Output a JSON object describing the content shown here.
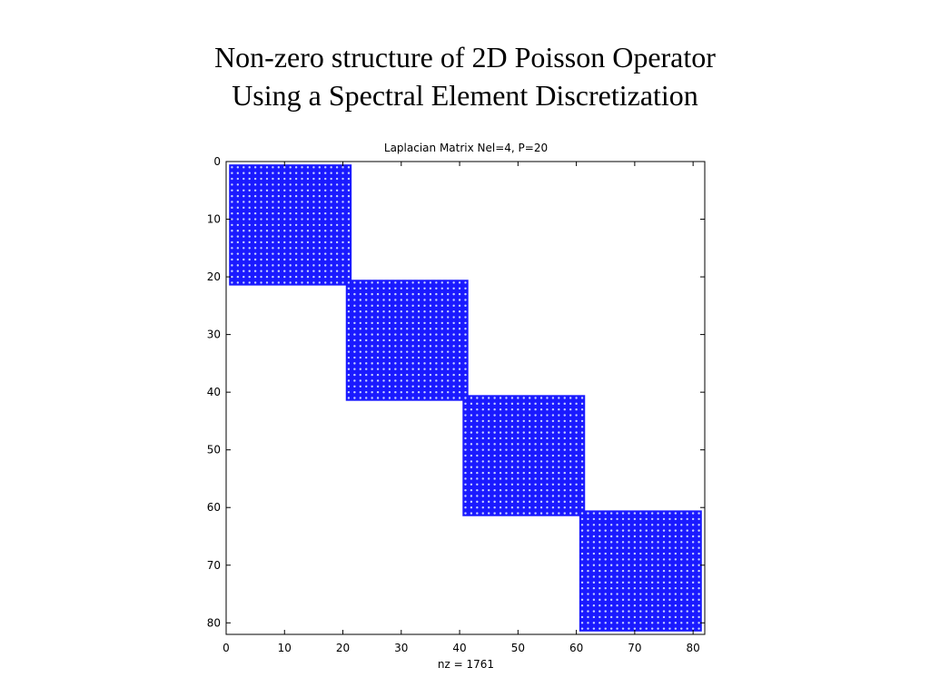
{
  "slide": {
    "title_line1": "Non-zero structure of 2D Poisson Operator",
    "title_line2": "Using a Spectral Element Discretization"
  },
  "chart_data": {
    "type": "scatter",
    "subtype": "spy",
    "title": "Laplacian Matrix Nel=4, P=20",
    "xlabel": "nz = 1761",
    "ylabel": "",
    "xlim": [
      0,
      82
    ],
    "ylim": [
      0,
      82
    ],
    "y_reversed": true,
    "xticks": [
      0,
      10,
      20,
      30,
      40,
      50,
      60,
      70,
      80
    ],
    "yticks": [
      0,
      10,
      20,
      30,
      40,
      50,
      60,
      70,
      80
    ],
    "grid": false,
    "marker_color": "#1a1aff",
    "blocks": [
      {
        "row_start": 1,
        "row_end": 21,
        "col_start": 1,
        "col_end": 21
      },
      {
        "row_start": 21,
        "row_end": 41,
        "col_start": 21,
        "col_end": 41
      },
      {
        "row_start": 41,
        "row_end": 61,
        "col_start": 41,
        "col_end": 61
      },
      {
        "row_start": 61,
        "row_end": 81,
        "col_start": 61,
        "col_end": 81
      }
    ],
    "nz": 1761
  }
}
